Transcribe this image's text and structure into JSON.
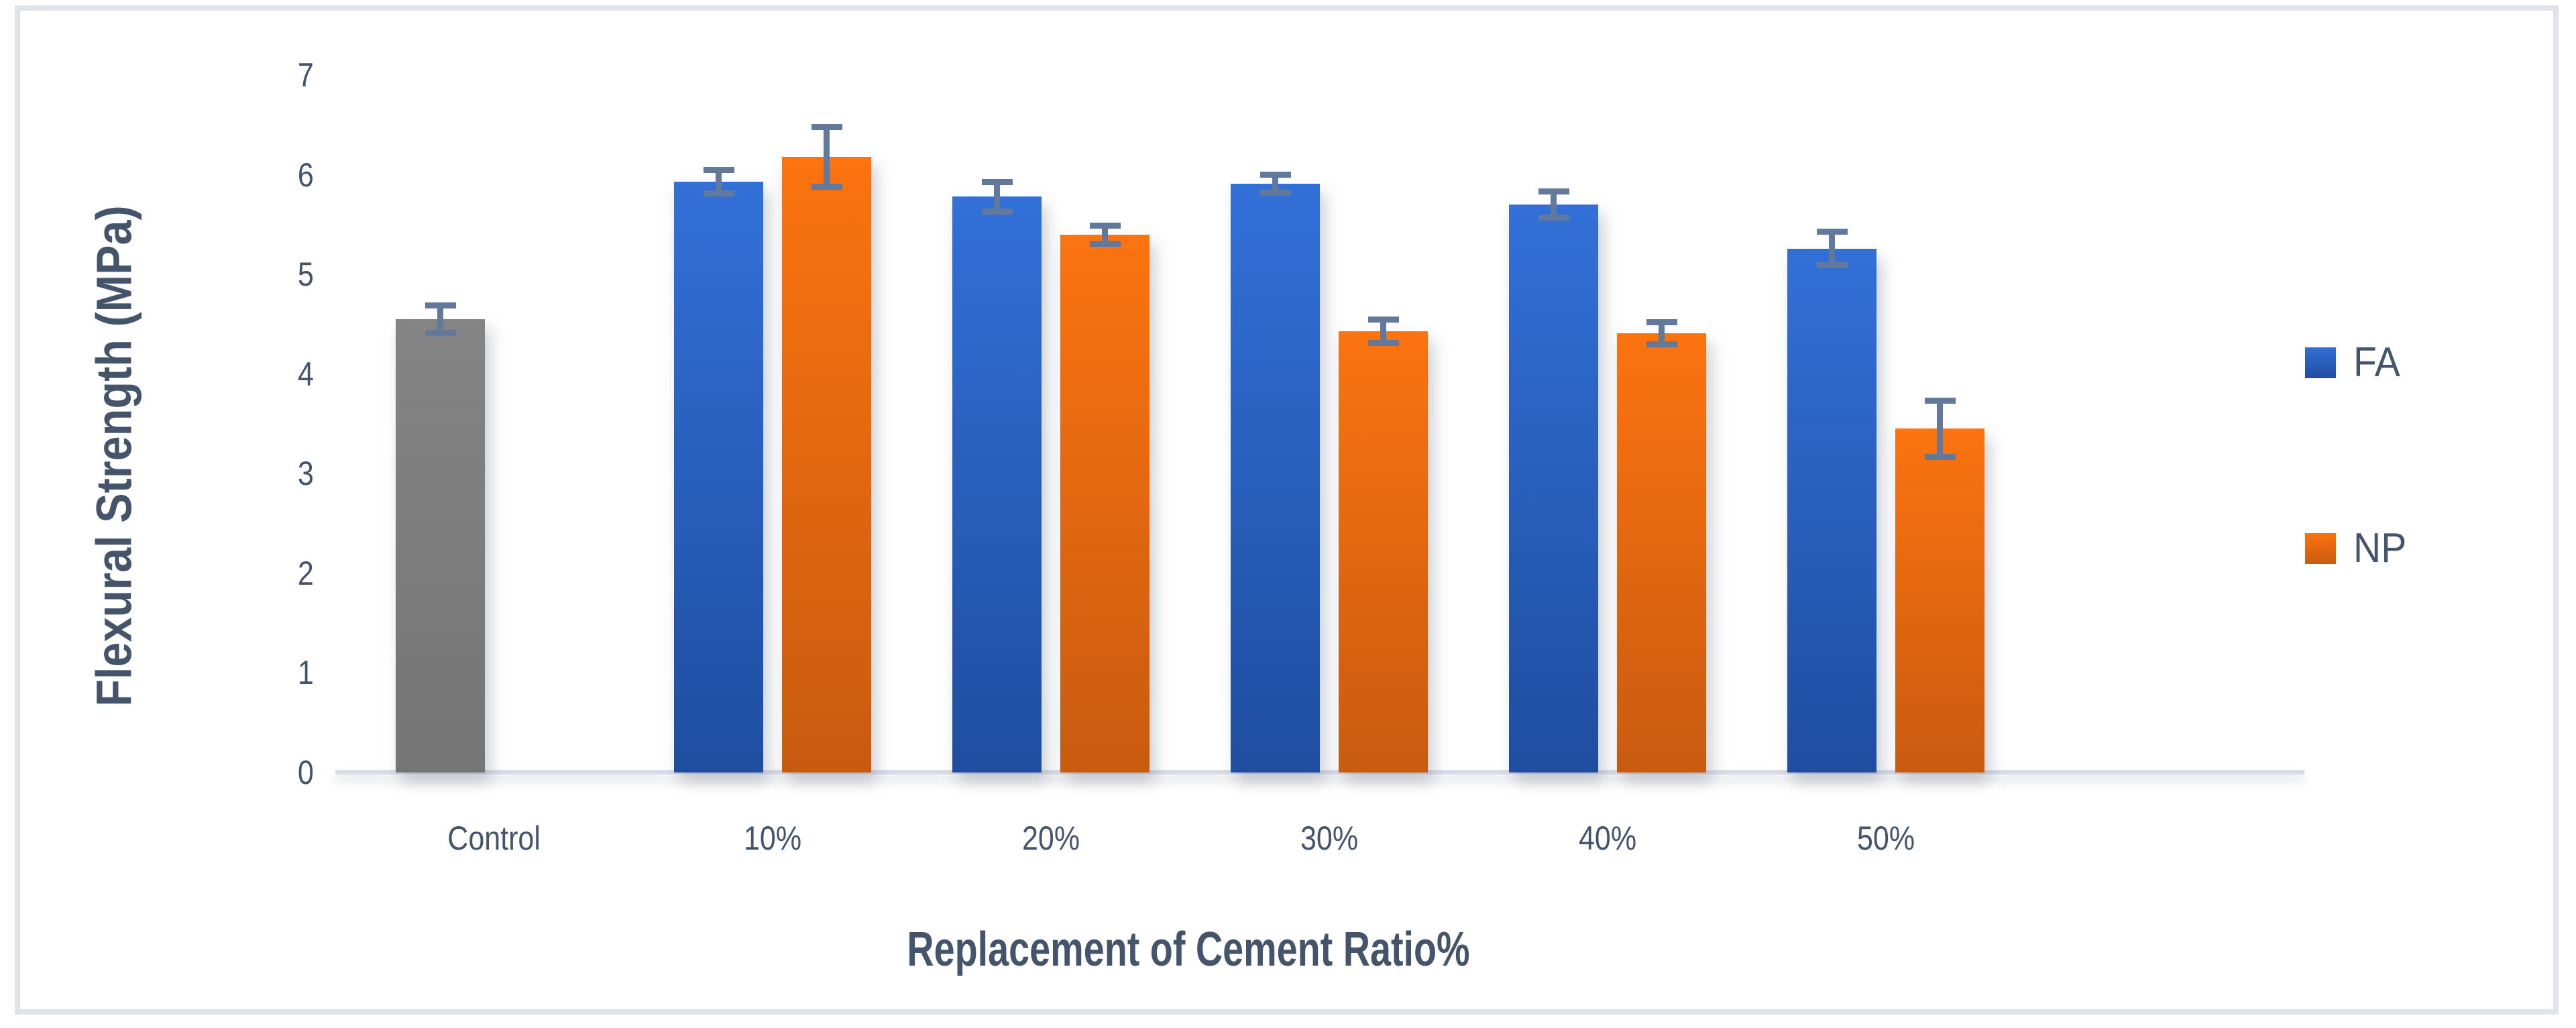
{
  "chart_data": {
    "type": "bar",
    "title": "",
    "ylabel": "Flexural Strength (MPa)",
    "xlabel": "Replacement of Cement Ratio%",
    "ylim": [
      0,
      7
    ],
    "yticks": [
      0,
      1,
      2,
      3,
      4,
      5,
      6,
      7
    ],
    "grid": "off",
    "legend_position": "right",
    "error_bars": "visible, y, symmetric, cap style",
    "categories": [
      "Control",
      "10%",
      "20%",
      "30%",
      "40%",
      "50%"
    ],
    "series": [
      {
        "name": "FA",
        "values": [
          4.55,
          5.93,
          5.78,
          5.91,
          5.7,
          5.26
        ],
        "errors": [
          0.17,
          0.15,
          0.18,
          0.12,
          0.16,
          0.2
        ],
        "point_colors": {
          "0": "gray"
        },
        "note_on_point_0": "Control category rendered as single gray bar"
      },
      {
        "name": "NP",
        "values": [
          null,
          6.18,
          5.4,
          4.43,
          4.41,
          3.45
        ],
        "errors": [
          null,
          0.33,
          0.12,
          0.15,
          0.14,
          0.31
        ]
      }
    ],
    "legend": [
      {
        "label": "FA",
        "color": "blue"
      },
      {
        "label": "NP",
        "color": "orange"
      }
    ],
    "colors": {
      "blue_top": "#3270D8",
      "blue_bottom": "#1F4DA0",
      "orange_top": "#FC7310",
      "orange_bottom": "#C85B10",
      "gray_top": "#848484",
      "gray_bottom": "#757575",
      "error_bar": "#63799B",
      "axis_line": "#D9DDE5",
      "text": "#44546A",
      "border": "#DFE3EA",
      "background": "#FFFFFF"
    }
  }
}
